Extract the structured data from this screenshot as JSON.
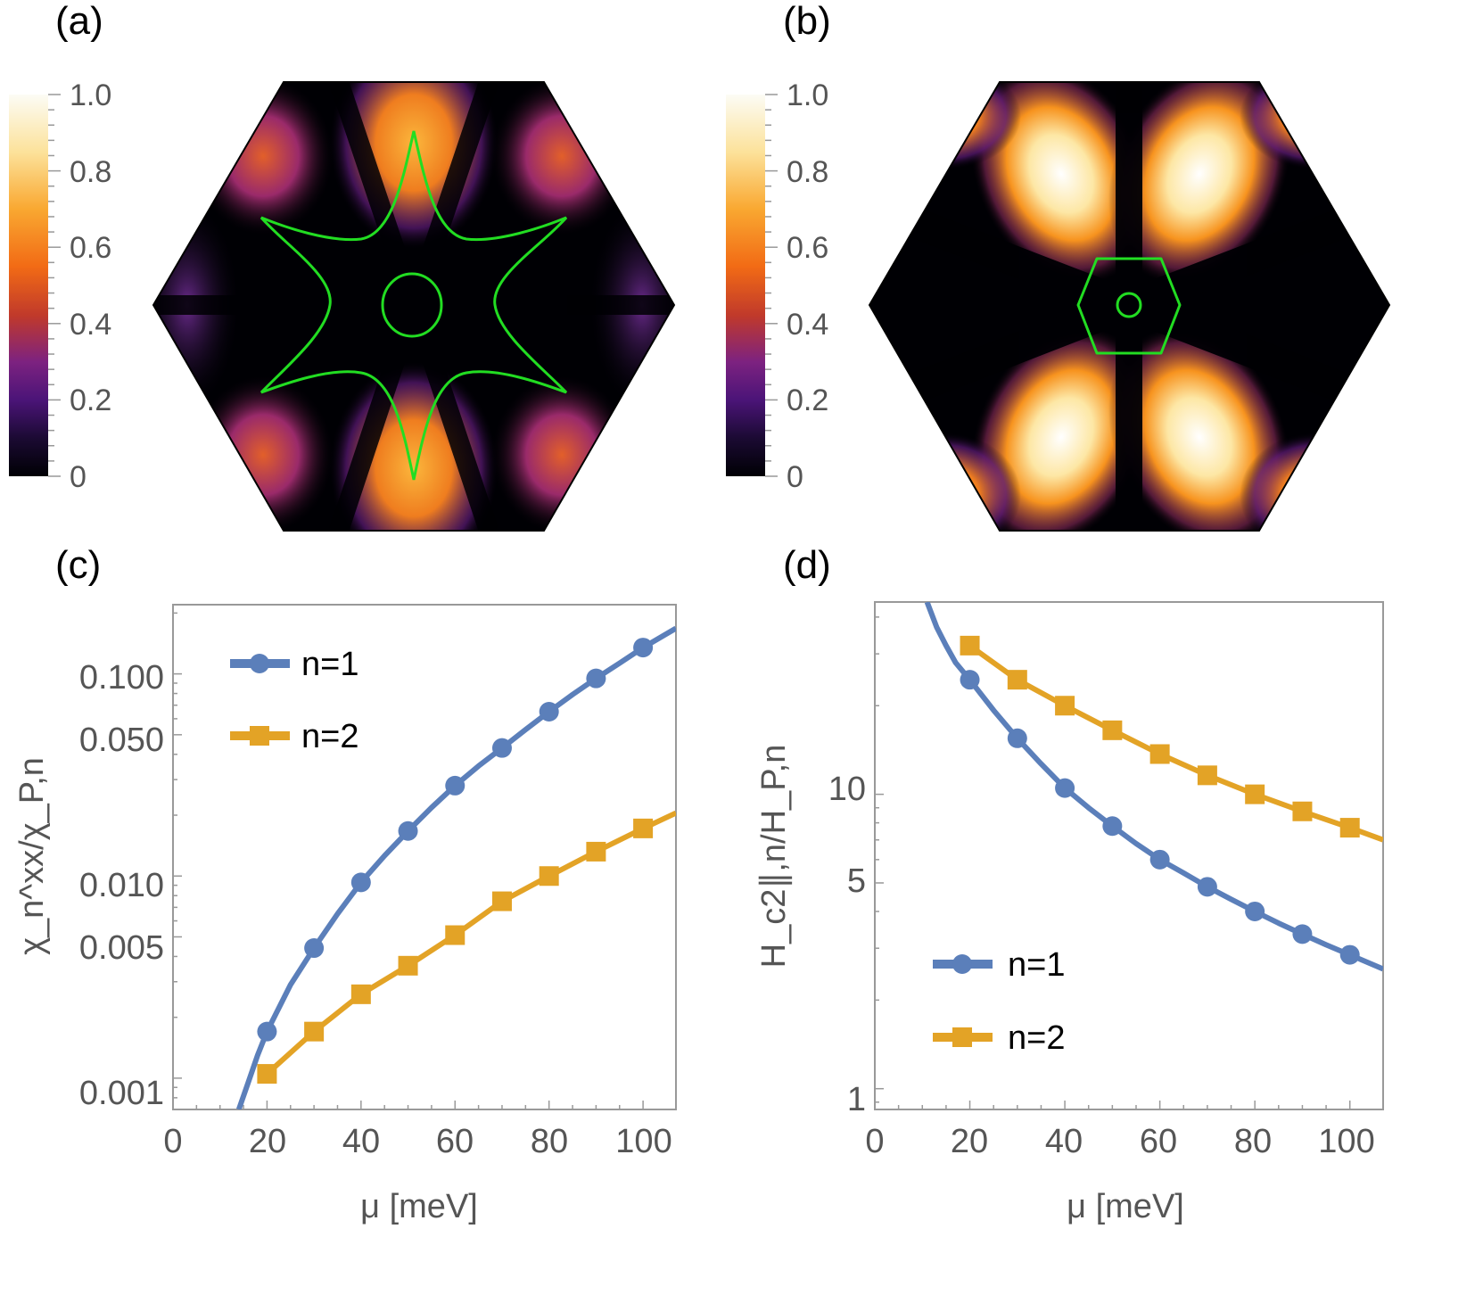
{
  "panel_labels": [
    "(a)",
    "(b)",
    "(c)",
    "(d)"
  ],
  "colorbar": {
    "ticks": [
      "1.0",
      "0.8",
      "0.6",
      "0.4",
      "0.2",
      "0"
    ],
    "range": [
      0,
      1
    ],
    "colors": [
      "#000004",
      "#2a0a55",
      "#6a1c8c",
      "#c0392b",
      "#f26b15",
      "#f9a831",
      "#fce29b",
      "#fcfcf5"
    ]
  },
  "map_a": {
    "contour_color": "#22dd22",
    "description_shape": "star"
  },
  "map_b": {
    "contour_color": "#22dd22"
  },
  "chart_data": [
    {
      "type": "line",
      "panel": "(c)",
      "xlabel": "μ [meV]",
      "ylabel": "χ_n^xx/χ_P,n",
      "yscale": "log",
      "xlim": [
        0,
        107
      ],
      "ylim": [
        0.0007,
        0.22
      ],
      "xticks": [
        "0",
        "20",
        "40",
        "60",
        "80",
        "100"
      ],
      "yticks": [
        "0.100",
        "0.050",
        "0.010",
        "0.005",
        "0.001"
      ],
      "ytick_values": [
        0.1,
        0.05,
        0.01,
        0.005,
        0.001
      ],
      "series": [
        {
          "name": "n=1",
          "color": "#5b7fba",
          "marker": "circle",
          "x": [
            20,
            30,
            40,
            50,
            60,
            70,
            80,
            90,
            100
          ],
          "values": [
            0.0017,
            0.0044,
            0.0093,
            0.0167,
            0.028,
            0.043,
            0.065,
            0.095,
            0.135
          ],
          "curve_x": [
            14,
            16,
            18,
            20,
            25,
            30,
            35,
            40,
            45,
            50,
            55,
            60,
            65,
            70,
            75,
            80,
            85,
            90,
            95,
            100,
            107
          ],
          "curve_y": [
            0.0007,
            0.00095,
            0.0013,
            0.0017,
            0.0029,
            0.0044,
            0.0065,
            0.0093,
            0.0126,
            0.0167,
            0.0218,
            0.028,
            0.035,
            0.043,
            0.053,
            0.065,
            0.079,
            0.095,
            0.113,
            0.135,
            0.168
          ]
        },
        {
          "name": "n=2",
          "color": "#e3a326",
          "marker": "square",
          "x": [
            20,
            30,
            40,
            50,
            60,
            70,
            80,
            90,
            100
          ],
          "values": [
            0.00105,
            0.0017,
            0.0026,
            0.0036,
            0.0051,
            0.0075,
            0.01,
            0.0132,
            0.0172
          ],
          "curve_x": [
            20,
            30,
            40,
            50,
            60,
            70,
            80,
            90,
            100,
            107
          ],
          "curve_y": [
            0.00105,
            0.0017,
            0.0026,
            0.0036,
            0.0051,
            0.0075,
            0.01,
            0.0132,
            0.0172,
            0.0205
          ]
        }
      ]
    },
    {
      "type": "line",
      "panel": "(d)",
      "xlabel": "μ [meV]",
      "ylabel": "H_c2∥,n/H_P,n",
      "yscale": "log",
      "xlim": [
        0,
        107
      ],
      "ylim": [
        0.85,
        45
      ],
      "xticks": [
        "0",
        "20",
        "40",
        "60",
        "80",
        "100"
      ],
      "yticks": [
        "10",
        "5",
        "1"
      ],
      "ytick_values": [
        10,
        5,
        1
      ],
      "series": [
        {
          "name": "n=1",
          "color": "#5b7fba",
          "marker": "circle",
          "x": [
            20,
            30,
            40,
            50,
            60,
            70,
            80,
            90,
            100
          ],
          "values": [
            24.5,
            15.5,
            10.5,
            7.8,
            6.0,
            4.85,
            4.0,
            3.35,
            2.85
          ],
          "curve_x": [
            11,
            13,
            15,
            17,
            20,
            25,
            30,
            35,
            40,
            45,
            50,
            55,
            60,
            65,
            70,
            75,
            80,
            85,
            90,
            95,
            100,
            107
          ],
          "curve_y": [
            45,
            37,
            32,
            28,
            24.5,
            19.3,
            15.5,
            12.7,
            10.5,
            9.0,
            7.8,
            6.8,
            6.0,
            5.4,
            4.85,
            4.4,
            4.0,
            3.65,
            3.35,
            3.08,
            2.85,
            2.55
          ]
        },
        {
          "name": "n=2",
          "color": "#e3a326",
          "marker": "square",
          "x": [
            20,
            30,
            40,
            50,
            60,
            70,
            80,
            90,
            100
          ],
          "values": [
            32,
            24.5,
            20,
            16.5,
            13.7,
            11.6,
            10.0,
            8.75,
            7.7
          ],
          "curve_x": [
            20,
            30,
            40,
            50,
            60,
            70,
            80,
            90,
            100,
            107
          ],
          "curve_y": [
            32,
            24.5,
            20,
            16.5,
            13.7,
            11.6,
            10.0,
            8.75,
            7.7,
            7.0
          ]
        }
      ]
    }
  ]
}
